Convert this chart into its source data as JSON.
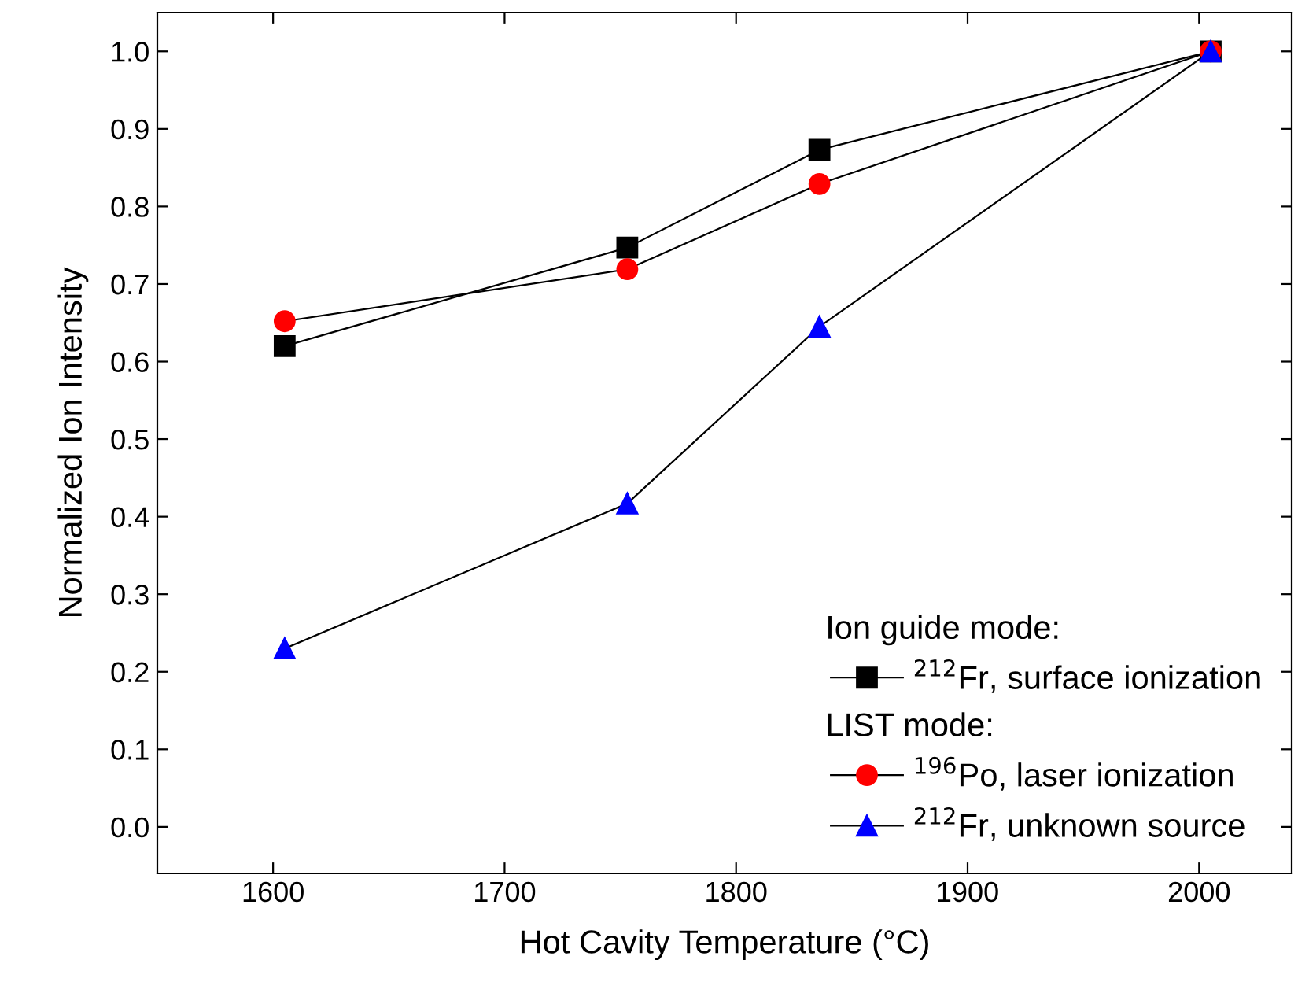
{
  "chart_data": {
    "type": "line",
    "xlabel": "Hot Cavity Temperature (°C)",
    "ylabel": "Normalized Ion Intensity",
    "x": [
      1605,
      1753,
      1836,
      2005
    ],
    "series": [
      {
        "name": "$^{212}$Fr, surface ionization",
        "color": "#000000",
        "marker": "square",
        "values": [
          0.62,
          0.747,
          0.873,
          1.0
        ]
      },
      {
        "name": "$^{196}$Po, laser ionization",
        "color": "#ff0000",
        "marker": "circle",
        "values": [
          0.652,
          0.719,
          0.829,
          1.0
        ]
      },
      {
        "name": "$^{212}$Fr, unknown source",
        "color": "#0000ff",
        "marker": "triangle",
        "values": [
          0.23,
          0.417,
          0.645,
          1.0
        ]
      }
    ],
    "annotations": [
      "Ion guide mode:",
      "LIST mode:"
    ],
    "xlim": [
      1550,
      2040
    ],
    "xticks": [
      1600,
      1700,
      1800,
      1900,
      2000
    ],
    "ylim": [
      -0.06,
      1.05
    ],
    "yticks": [
      {
        "value": 0,
        "label": "0.0"
      },
      0.1,
      0.2,
      0.3,
      0.4,
      0.5,
      0.6,
      0.7,
      0.8,
      0.9,
      {
        "value": 1,
        "label": "1.0"
      }
    ],
    "legend": "bottom right",
    "grid": false,
    "line_style": "solid"
  }
}
